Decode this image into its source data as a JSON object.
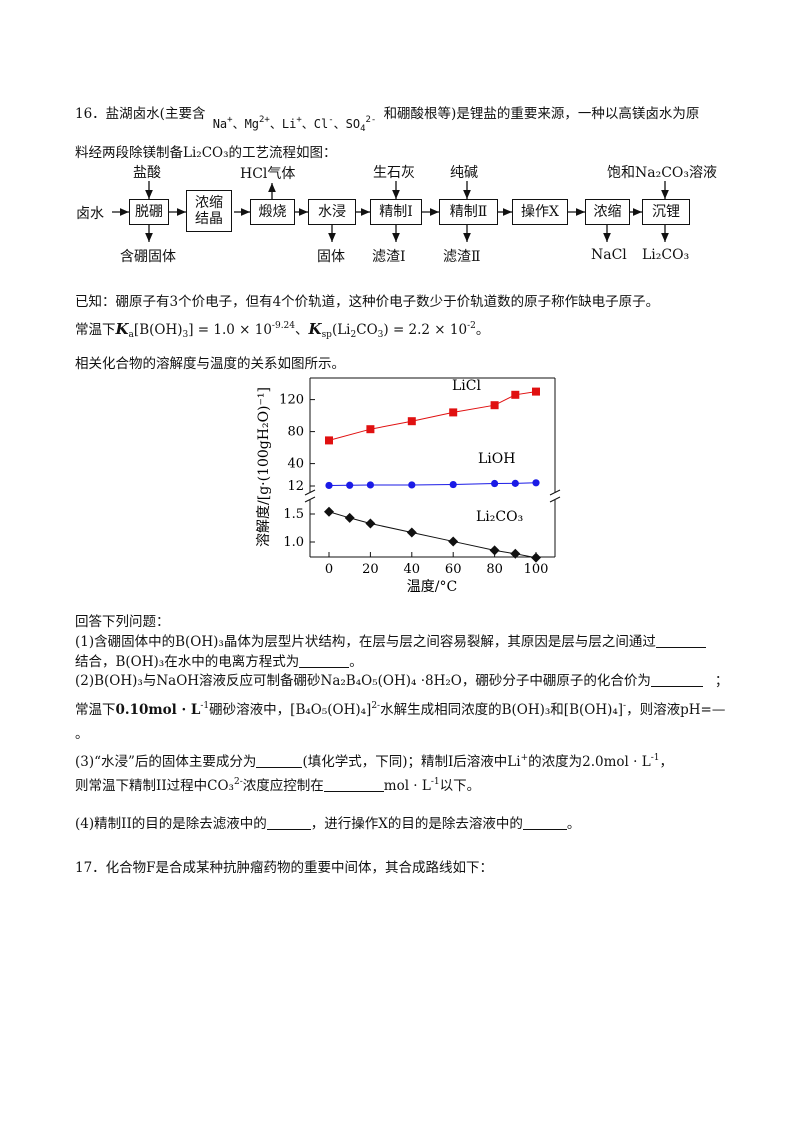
{
  "q16": {
    "intro_a": "16．盐湖卤水(主要含",
    "ions": [
      "Na",
      "+",
      "、Mg",
      "2+",
      "、Li",
      "+",
      "、Cl",
      "-",
      "、SO",
      "4",
      "2-"
    ],
    "intro_b": "和硼酸根等)是锂盐的重要来源，一种以高镁卤水为原",
    "intro2": "料经两段除镁制备Li₂CO₃的工艺流程如图：",
    "flow": {
      "start": "卤水",
      "boxes": [
        "脱硼",
        "浓缩结晶",
        "煅烧",
        "水浸",
        "精制Ⅰ",
        "精制Ⅱ",
        "操作X",
        "浓缩",
        "沉锂"
      ],
      "inputs": [
        "盐酸",
        "生石灰",
        "纯碱",
        "饱和Na₂CO₃溶液"
      ],
      "gas": "HCl气体",
      "outputs": [
        "含硼固体",
        "固体",
        "滤渣Ⅰ",
        "滤渣Ⅱ",
        "NaCl",
        "Li₂CO₃"
      ]
    },
    "known1": "已知：硼原子有3个价电子，但有4个价轨道，这种价电子数少于价轨道数的原子称作缺电子原子。",
    "known2_pre": "常温下",
    "known2_ka": "K",
    "known2_ka_sub": "a",
    "known2_ka_arg": "[B(OH)",
    "known2_ka_arg2": "3",
    "known2_ka_val": "] = 1.0 × 10",
    "known2_ka_exp": "-9.24",
    "known2_sep": "、",
    "known2_ksp": "K",
    "known2_ksp_sub": "sp",
    "known2_ksp_arg": "(Li",
    "known2_ksp_arg2": "2",
    "known2_ksp_arg3": "CO",
    "known2_ksp_arg4": "3",
    "known2_ksp_val": ") = 2.2 × 10",
    "known2_ksp_exp": "-2",
    "known2_end": "。",
    "sol_intro": "相关化合物的溶解度与温度的关系如图所示。",
    "answer_intro": "回答下列问题：",
    "p1a": "(1)含硼固体中的B(OH)₃晶体为层型片状结构，在层与层之间容易裂解，其原因是层与层之间通过",
    "p1b": "结合，B(OH)₃在水中的电离方程式为",
    "p1c": "。",
    "p2a": "(2)B(OH)₃与NaOH溶液反应可制备硼砂Na₂B₄O₅(OH)₄ ·8H₂O，硼砂分子中硼原子的化合价为",
    "p2b": "；",
    "p2c": "常温下",
    "p2d": "0.10mol · L",
    "p2d_exp": "-1",
    "p2e": "硼砂溶液中，[B₄O₅(OH)₄]",
    "p2e_exp": "2-",
    "p2f": "水解生成相同浓度的B(OH)₃和[B(OH)₄]",
    "p2f_exp": "-",
    "p2g": "，则溶液pH=—",
    "p2h": "。",
    "p3a": "(3)“水浸”后的固体主要成分为",
    "p3b": "(填化学式，下同)；精制Ⅰ后溶液中Li",
    "p3b_exp": "+",
    "p3c": "的浓度为2.0mol · L",
    "p3c_exp": "-1",
    "p3d": "，",
    "p3e": "则常温下精制II过程中CO₃",
    "p3e_exp": "2-",
    "p3f": "浓度应控制在",
    "p3g": "mol · L",
    "p3g_exp": "-1",
    "p3h": "以下。",
    "p4a": "(4)精制II的目的是除去滤液中的",
    "p4b": "，进行操作X的目的是除去溶液中的",
    "p4c": "。"
  },
  "q17": {
    "text": "17．化合物F是合成某种抗肿瘤药物的重要中间体，其合成路线如下："
  },
  "chart_data": {
    "type": "line",
    "xlabel": "温度/°C",
    "ylabel": "溶解度/[g·(100gH₂O)⁻¹]",
    "x_ticks": [
      "0",
      "20",
      "40",
      "60",
      "80",
      "100"
    ],
    "upper_y_ticks": [
      "12",
      "40",
      "80",
      "120"
    ],
    "lower_y_ticks": [
      "1.0",
      "1.5"
    ],
    "axis_break": true,
    "series": [
      {
        "name": "LiCl",
        "color": "#e01010",
        "marker": "square",
        "x": [
          0,
          20,
          40,
          60,
          80,
          90,
          100
        ],
        "y": [
          69,
          83,
          93,
          104,
          113,
          126,
          130
        ]
      },
      {
        "name": "LiOH",
        "color": "#1a1ae6",
        "marker": "circle",
        "x": [
          0,
          10,
          20,
          40,
          60,
          80,
          90,
          100
        ],
        "y": [
          12.7,
          12.9,
          13.3,
          13.3,
          13.8,
          15.1,
          15.3,
          16.0
        ]
      },
      {
        "name": "Li₂CO₃",
        "color": "#111111",
        "marker": "diamond",
        "x": [
          0,
          10,
          20,
          40,
          60,
          80,
          90,
          100
        ],
        "y": [
          1.54,
          1.43,
          1.33,
          1.17,
          1.01,
          0.85,
          0.79,
          0.72
        ]
      }
    ]
  }
}
